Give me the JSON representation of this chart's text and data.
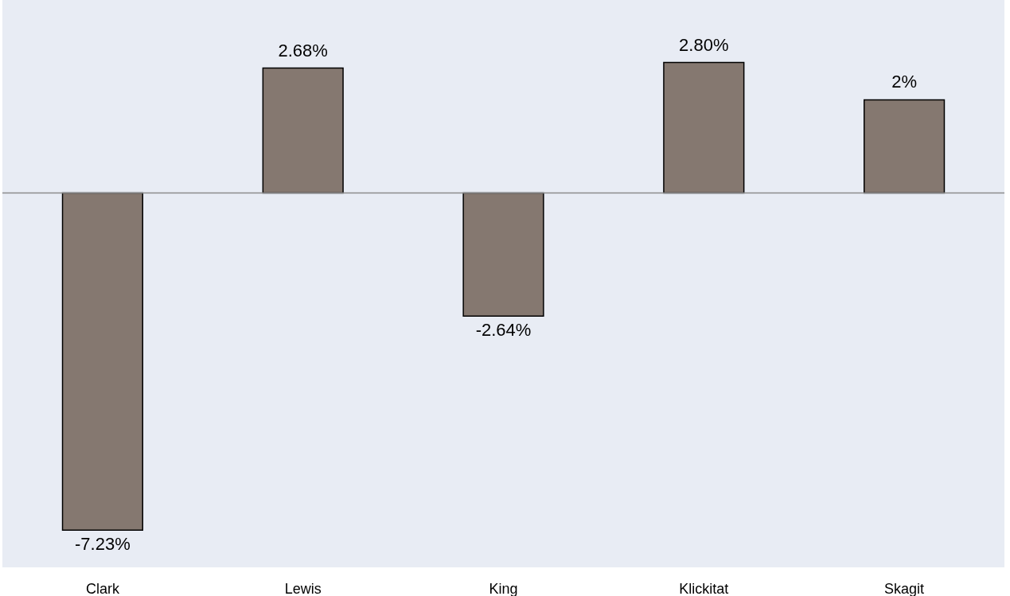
{
  "chart_data": {
    "type": "bar",
    "categories": [
      "Clark",
      "Lewis",
      "King",
      "Klickitat",
      "Skagit"
    ],
    "values": [
      -7.23,
      2.68,
      -2.64,
      2.8,
      2
    ],
    "value_labels": [
      "-7.23%",
      "2.68%",
      "-2.64%",
      "2.80%",
      "2%"
    ],
    "color": "#857870",
    "ylim": [
      -8.03,
      4.14
    ]
  }
}
